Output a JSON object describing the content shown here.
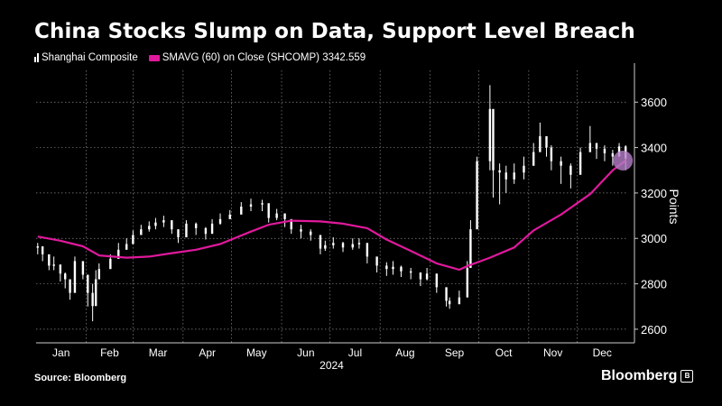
{
  "title": "China Stocks Slump on Data, Support Level Breach",
  "legend": {
    "series1": "Shanghai Composite",
    "series2": "SMAVG (60)  on Close (SHCOMP) 3342.559"
  },
  "source": "Source: Bloomberg",
  "brand": "Bloomberg",
  "brand_mark": "B",
  "colors": {
    "background": "#000000",
    "candle": "#ffffff",
    "sma": "#e0199c",
    "highlight": "#b57ec8",
    "grid": "#888888"
  },
  "chart_data": {
    "type": "line",
    "title": "China Stocks Slump on Data, Support Level Breach",
    "ylabel": "Points",
    "xlabel": "2024",
    "ylim": [
      2540,
      3740
    ],
    "yticks": [
      2600,
      2800,
      3000,
      3200,
      3400,
      3600
    ],
    "x_tick_labels": [
      "Jan",
      "Feb",
      "Mar",
      "Apr",
      "May",
      "Jun",
      "Jul",
      "Aug",
      "Sep",
      "Oct",
      "Nov",
      "Dec"
    ],
    "year_label": "2024",
    "grid": true,
    "series": [
      {
        "name": "Shanghai Composite",
        "style": "candlestick",
        "dates": [
          "2024-01-02",
          "2024-01-05",
          "2024-01-09",
          "2024-01-12",
          "2024-01-16",
          "2024-01-19",
          "2024-01-22",
          "2024-01-25",
          "2024-01-30",
          "2024-02-02",
          "2024-02-05",
          "2024-02-07",
          "2024-02-09",
          "2024-02-16",
          "2024-02-21",
          "2024-02-26",
          "2024-03-01",
          "2024-03-06",
          "2024-03-11",
          "2024-03-15",
          "2024-03-20",
          "2024-03-25",
          "2024-03-29",
          "2024-04-03",
          "2024-04-09",
          "2024-04-15",
          "2024-04-19",
          "2024-04-24",
          "2024-04-30",
          "2024-05-07",
          "2024-05-13",
          "2024-05-20",
          "2024-05-24",
          "2024-05-29",
          "2024-06-03",
          "2024-06-07",
          "2024-06-13",
          "2024-06-19",
          "2024-06-25",
          "2024-06-28",
          "2024-07-03",
          "2024-07-09",
          "2024-07-15",
          "2024-07-19",
          "2024-07-24",
          "2024-07-30",
          "2024-08-05",
          "2024-08-09",
          "2024-08-14",
          "2024-08-20",
          "2024-08-26",
          "2024-08-30",
          "2024-09-05",
          "2024-09-11",
          "2024-09-13",
          "2024-09-19",
          "2024-09-24",
          "2024-09-26",
          "2024-09-30",
          "2024-10-08",
          "2024-10-10",
          "2024-10-14",
          "2024-10-18",
          "2024-10-23",
          "2024-10-29",
          "2024-11-04",
          "2024-11-08",
          "2024-11-12",
          "2024-11-15",
          "2024-11-21",
          "2024-11-27",
          "2024-12-03",
          "2024-12-09",
          "2024-12-13",
          "2024-12-18",
          "2024-12-23",
          "2024-12-27",
          "2024-12-31"
        ],
        "close": [
          2965,
          2930,
          2880,
          2885,
          2845,
          2820,
          2760,
          2900,
          2840,
          2760,
          2702,
          2820,
          2865,
          2910,
          2950,
          2975,
          3015,
          3040,
          3055,
          3070,
          3080,
          3040,
          3005,
          3065,
          3045,
          3020,
          3065,
          3085,
          3105,
          3140,
          3150,
          3155,
          3090,
          3110,
          3085,
          3040,
          3030,
          3015,
          2955,
          2970,
          2980,
          2960,
          2975,
          2980,
          2920,
          2880,
          2865,
          2875,
          2855,
          2850,
          2820,
          2845,
          2785,
          2725,
          2710,
          2740,
          2870,
          3040,
          3340,
          3570,
          3300,
          3290,
          3260,
          3290,
          3320,
          3380,
          3450,
          3400,
          3340,
          3320,
          3280,
          3380,
          3420,
          3395,
          3375,
          3360,
          3405,
          3352
        ],
        "high": [
          2980,
          2960,
          2900,
          2920,
          2870,
          2850,
          2800,
          2920,
          2890,
          2800,
          2800,
          2860,
          2890,
          2930,
          2980,
          3000,
          3035,
          3060,
          3075,
          3090,
          3100,
          3060,
          3040,
          3080,
          3070,
          3050,
          3085,
          3110,
          3125,
          3160,
          3175,
          3170,
          3120,
          3130,
          3100,
          3060,
          3060,
          3040,
          2980,
          2990,
          3005,
          2985,
          3000,
          3000,
          2950,
          2905,
          2895,
          2900,
          2880,
          2870,
          2850,
          2870,
          2810,
          2740,
          2740,
          2770,
          2900,
          3080,
          3360,
          3675,
          3420,
          3330,
          3320,
          3330,
          3360,
          3420,
          3510,
          3450,
          3410,
          3360,
          3330,
          3400,
          3495,
          3420,
          3410,
          3390,
          3420,
          3410
        ],
        "low": [
          2930,
          2900,
          2860,
          2860,
          2810,
          2780,
          2730,
          2860,
          2820,
          2700,
          2635,
          2780,
          2845,
          2890,
          2920,
          2955,
          2990,
          3015,
          3030,
          3040,
          3050,
          3020,
          2980,
          3035,
          3015,
          2995,
          3040,
          3060,
          3085,
          3110,
          3120,
          3120,
          3070,
          3080,
          3050,
          3020,
          3000,
          2990,
          2930,
          2945,
          2955,
          2940,
          2950,
          2955,
          2890,
          2850,
          2835,
          2840,
          2830,
          2820,
          2790,
          2815,
          2760,
          2700,
          2690,
          2715,
          2840,
          2990,
          3200,
          3300,
          3180,
          3150,
          3200,
          3240,
          3260,
          3320,
          3400,
          3360,
          3300,
          3240,
          3220,
          3330,
          3380,
          3350,
          3340,
          3320,
          3370,
          3300
        ]
      },
      {
        "name": "SMAVG (60)  on Close (SHCOMP)",
        "style": "line",
        "dates": [
          "2024-01-02",
          "2024-01-16",
          "2024-01-30",
          "2024-02-09",
          "2024-02-26",
          "2024-03-11",
          "2024-03-25",
          "2024-04-09",
          "2024-04-24",
          "2024-05-13",
          "2024-05-24",
          "2024-06-07",
          "2024-06-25",
          "2024-07-09",
          "2024-07-24",
          "2024-08-05",
          "2024-08-20",
          "2024-09-05",
          "2024-09-19",
          "2024-09-24",
          "2024-10-08",
          "2024-10-23",
          "2024-11-04",
          "2024-11-21",
          "2024-12-09",
          "2024-12-23",
          "2024-12-31"
        ],
        "values": [
          3008,
          2990,
          2965,
          2925,
          2915,
          2920,
          2935,
          2950,
          2975,
          3030,
          3060,
          3078,
          3075,
          3065,
          3045,
          2995,
          2945,
          2890,
          2862,
          2878,
          2915,
          2960,
          3035,
          3105,
          3195,
          3300,
          3342.559
        ]
      }
    ],
    "last_value": 3342.559
  }
}
